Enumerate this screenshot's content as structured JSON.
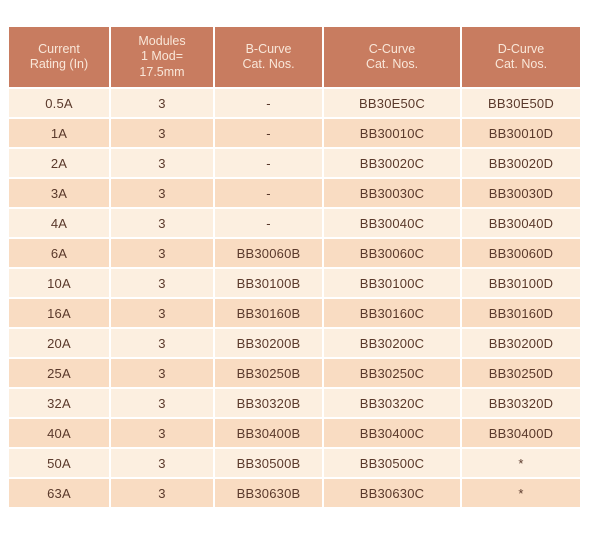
{
  "colors": {
    "header_bg": "#c87c60",
    "header_text": "#f9e7d9",
    "row_light_bg": "#fcefe0",
    "row_dark_bg": "#f9dcc2",
    "cell_text": "#5a392b",
    "page_bg": "#ffffff"
  },
  "table": {
    "columns": [
      {
        "key": "current_rating",
        "label": "Current\nRating (In)"
      },
      {
        "key": "modules",
        "label": "Modules\n1 Mod=\n17.5mm"
      },
      {
        "key": "b_curve",
        "label": "B-Curve\nCat. Nos."
      },
      {
        "key": "c_curve",
        "label": "C-Curve\nCat. Nos."
      },
      {
        "key": "d_curve",
        "label": "D-Curve\nCat. Nos."
      }
    ],
    "rows": [
      {
        "current_rating": "0.5A",
        "modules": "3",
        "b_curve": "-",
        "c_curve": "BB30E50C",
        "d_curve": "BB30E50D"
      },
      {
        "current_rating": "1A",
        "modules": "3",
        "b_curve": "-",
        "c_curve": "BB30010C",
        "d_curve": "BB30010D"
      },
      {
        "current_rating": "2A",
        "modules": "3",
        "b_curve": "-",
        "c_curve": "BB30020C",
        "d_curve": "BB30020D"
      },
      {
        "current_rating": "3A",
        "modules": "3",
        "b_curve": "-",
        "c_curve": "BB30030C",
        "d_curve": "BB30030D"
      },
      {
        "current_rating": "4A",
        "modules": "3",
        "b_curve": "-",
        "c_curve": "BB30040C",
        "d_curve": "BB30040D"
      },
      {
        "current_rating": "6A",
        "modules": "3",
        "b_curve": "BB30060B",
        "c_curve": "BB30060C",
        "d_curve": "BB30060D"
      },
      {
        "current_rating": "10A",
        "modules": "3",
        "b_curve": "BB30100B",
        "c_curve": "BB30100C",
        "d_curve": "BB30100D"
      },
      {
        "current_rating": "16A",
        "modules": "3",
        "b_curve": "BB30160B",
        "c_curve": "BB30160C",
        "d_curve": "BB30160D"
      },
      {
        "current_rating": "20A",
        "modules": "3",
        "b_curve": "BB30200B",
        "c_curve": "BB30200C",
        "d_curve": "BB30200D"
      },
      {
        "current_rating": "25A",
        "modules": "3",
        "b_curve": "BB30250B",
        "c_curve": "BB30250C",
        "d_curve": "BB30250D"
      },
      {
        "current_rating": "32A",
        "modules": "3",
        "b_curve": "BB30320B",
        "c_curve": "BB30320C",
        "d_curve": "BB30320D"
      },
      {
        "current_rating": "40A",
        "modules": "3",
        "b_curve": "BB30400B",
        "c_curve": "BB30400C",
        "d_curve": "BB30400D"
      },
      {
        "current_rating": "50A",
        "modules": "3",
        "b_curve": "BB30500B",
        "c_curve": "BB30500C",
        "d_curve": "*"
      },
      {
        "current_rating": "63A",
        "modules": "3",
        "b_curve": "BB30630B",
        "c_curve": "BB30630C",
        "d_curve": "*"
      }
    ]
  }
}
